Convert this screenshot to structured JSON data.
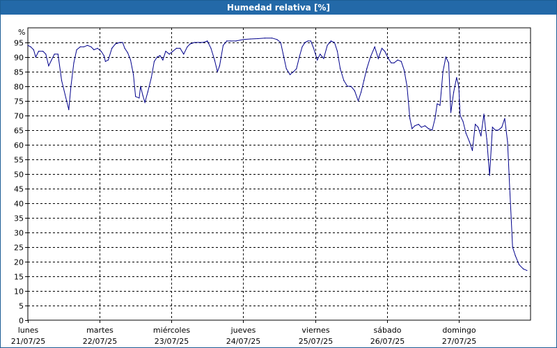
{
  "chart_data": {
    "type": "line",
    "title": "Humedad relativa [%]",
    "ylabel": "%",
    "ylim": [
      0,
      100
    ],
    "yticks": [
      0,
      5,
      10,
      15,
      20,
      25,
      30,
      35,
      40,
      45,
      50,
      55,
      60,
      65,
      70,
      75,
      80,
      85,
      90,
      95
    ],
    "xlim": [
      0,
      7
    ],
    "x_unit": "days from lunes 21/07/25 00:00",
    "grid": true,
    "color": "#00008b",
    "xticks": [
      {
        "day": "lunes",
        "date": "21/07/25"
      },
      {
        "day": "martes",
        "date": "22/07/25"
      },
      {
        "day": "miércoles",
        "date": "23/07/25"
      },
      {
        "day": "jueves",
        "date": "24/07/25"
      },
      {
        "day": "viernes",
        "date": "25/07/25"
      },
      {
        "day": "sábado",
        "date": "26/07/25"
      },
      {
        "day": "domingo",
        "date": "27/07/25"
      }
    ],
    "series": [
      {
        "points": [
          [
            0.0,
            94
          ],
          [
            0.04,
            93.5
          ],
          [
            0.08,
            92.5
          ],
          [
            0.11,
            90
          ],
          [
            0.15,
            92
          ],
          [
            0.21,
            92
          ],
          [
            0.25,
            91
          ],
          [
            0.29,
            87
          ],
          [
            0.33,
            89
          ],
          [
            0.37,
            91
          ],
          [
            0.42,
            91
          ],
          [
            0.47,
            82
          ],
          [
            0.54,
            75
          ],
          [
            0.57,
            72
          ],
          [
            0.6,
            80
          ],
          [
            0.64,
            88
          ],
          [
            0.68,
            92.5
          ],
          [
            0.73,
            93.5
          ],
          [
            0.78,
            93.5
          ],
          [
            0.83,
            94
          ],
          [
            0.88,
            93.5
          ],
          [
            0.92,
            92.5
          ],
          [
            0.97,
            93
          ],
          [
            1.02,
            92
          ],
          [
            1.06,
            90.5
          ],
          [
            1.08,
            88.5
          ],
          [
            1.12,
            89
          ],
          [
            1.17,
            93
          ],
          [
            1.22,
            94.5
          ],
          [
            1.28,
            95
          ],
          [
            1.32,
            95
          ],
          [
            1.35,
            93
          ],
          [
            1.39,
            91.5
          ],
          [
            1.43,
            89
          ],
          [
            1.47,
            84
          ],
          [
            1.5,
            76.5
          ],
          [
            1.55,
            76
          ],
          [
            1.57,
            80
          ],
          [
            1.6,
            77
          ],
          [
            1.63,
            74.5
          ],
          [
            1.67,
            78
          ],
          [
            1.72,
            83
          ],
          [
            1.76,
            88.5
          ],
          [
            1.8,
            90
          ],
          [
            1.84,
            90.5
          ],
          [
            1.88,
            89
          ],
          [
            1.92,
            92
          ],
          [
            1.97,
            91
          ],
          [
            2.02,
            92
          ],
          [
            2.07,
            93
          ],
          [
            2.12,
            93
          ],
          [
            2.17,
            91
          ],
          [
            2.22,
            93.5
          ],
          [
            2.26,
            94.5
          ],
          [
            2.32,
            95
          ],
          [
            2.38,
            95
          ],
          [
            2.44,
            95
          ],
          [
            2.5,
            95.5
          ],
          [
            2.55,
            93
          ],
          [
            2.6,
            89
          ],
          [
            2.64,
            85
          ],
          [
            2.67,
            87
          ],
          [
            2.72,
            94
          ],
          [
            2.77,
            95.5
          ],
          [
            2.82,
            95.5
          ],
          [
            2.9,
            95.5
          ],
          [
            3.0,
            96
          ],
          [
            3.1,
            96.2
          ],
          [
            3.2,
            96.3
          ],
          [
            3.3,
            96.5
          ],
          [
            3.4,
            96.5
          ],
          [
            3.47,
            96
          ],
          [
            3.52,
            95
          ],
          [
            3.56,
            90.5
          ],
          [
            3.6,
            86
          ],
          [
            3.65,
            84
          ],
          [
            3.7,
            85
          ],
          [
            3.74,
            86
          ],
          [
            3.78,
            90
          ],
          [
            3.82,
            93.5
          ],
          [
            3.86,
            95
          ],
          [
            3.9,
            95.5
          ],
          [
            3.94,
            95.5
          ],
          [
            3.98,
            93
          ],
          [
            4.03,
            89
          ],
          [
            4.07,
            91
          ],
          [
            4.12,
            89.5
          ],
          [
            4.17,
            94
          ],
          [
            4.22,
            95.5
          ],
          [
            4.27,
            95
          ],
          [
            4.31,
            92
          ],
          [
            4.35,
            86
          ],
          [
            4.4,
            82
          ],
          [
            4.45,
            80
          ],
          [
            4.5,
            80
          ],
          [
            4.55,
            78.5
          ],
          [
            4.6,
            75
          ],
          [
            4.64,
            78
          ],
          [
            4.68,
            82
          ],
          [
            4.72,
            86
          ],
          [
            4.77,
            90
          ],
          [
            4.83,
            93.5
          ],
          [
            4.88,
            89.5
          ],
          [
            4.93,
            93
          ],
          [
            4.97,
            92
          ],
          [
            5.02,
            89.5
          ],
          [
            5.06,
            88
          ],
          [
            5.1,
            88
          ],
          [
            5.15,
            89
          ],
          [
            5.2,
            88.5
          ],
          [
            5.24,
            85.5
          ],
          [
            5.28,
            80
          ],
          [
            5.32,
            69
          ],
          [
            5.35,
            65.5
          ],
          [
            5.39,
            66.5
          ],
          [
            5.44,
            67
          ],
          [
            5.48,
            66
          ],
          [
            5.53,
            66.5
          ],
          [
            5.58,
            65.5
          ],
          [
            5.63,
            65
          ],
          [
            5.67,
            69
          ],
          [
            5.7,
            74
          ],
          [
            5.74,
            73.5
          ],
          [
            5.78,
            85
          ],
          [
            5.82,
            90
          ],
          [
            5.86,
            88
          ],
          [
            5.89,
            71
          ],
          [
            5.93,
            78
          ],
          [
            5.97,
            83
          ],
          [
            6.0,
            80
          ],
          [
            6.02,
            70
          ],
          [
            6.06,
            68
          ],
          [
            6.1,
            64
          ],
          [
            6.15,
            61
          ],
          [
            6.19,
            58
          ],
          [
            6.23,
            67
          ],
          [
            6.27,
            66
          ],
          [
            6.31,
            63
          ],
          [
            6.35,
            70.5
          ],
          [
            6.39,
            62
          ],
          [
            6.43,
            49.5
          ],
          [
            6.47,
            66
          ],
          [
            6.51,
            65
          ],
          [
            6.55,
            65
          ],
          [
            6.6,
            66
          ],
          [
            6.64,
            69
          ],
          [
            6.68,
            61
          ],
          [
            6.71,
            45
          ],
          [
            6.73,
            35
          ],
          [
            6.75,
            25
          ],
          [
            6.79,
            22
          ],
          [
            6.84,
            19
          ],
          [
            6.9,
            17.5
          ],
          [
            6.95,
            17
          ]
        ]
      }
    ]
  }
}
